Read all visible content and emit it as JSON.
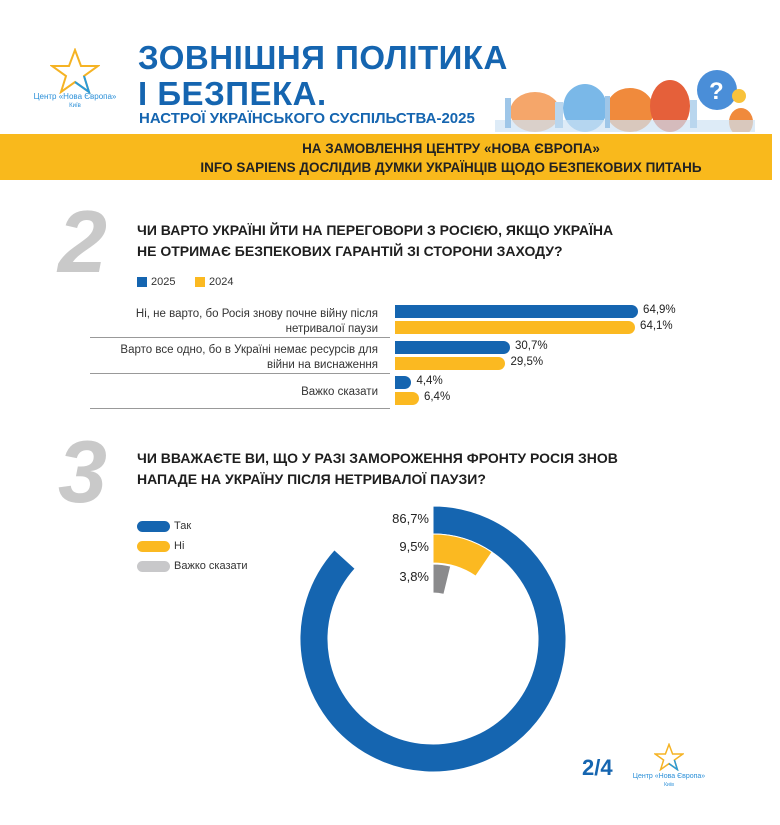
{
  "header": {
    "title_line1": "ЗОВНІШНЯ ПОЛІТИКА",
    "title_line2": "І БЕЗПЕКА.",
    "subtitle": "НАСТРОЇ УКРАЇНСЬКОГО СУСПІЛЬСТВА-2025",
    "logo_name": "Центр «Нова Європа»",
    "logo_city": "Київ"
  },
  "band": {
    "line1": "НА ЗАМОВЛЕННЯ ЦЕНТРУ «НОВА ЄВРОПА»",
    "line2": "INFO SAPIENS ДОСЛІДИВ ДУМКИ УКРАЇНЦІВ ЩОДО БЕЗПЕКОВИХ ПИТАНЬ"
  },
  "colors": {
    "blue": "#1565b0",
    "yellow": "#fbb921",
    "gray": "#8a8a8c",
    "band": "#f9b91c"
  },
  "footer": {
    "page": "2/4",
    "logo_name": "Центр «Нова Європа»",
    "logo_city": "Київ"
  },
  "chart_data": [
    {
      "type": "bar",
      "number": "2",
      "title_line1": "ЧИ ВАРТО УКРАЇНІ ЙТИ НА ПЕРЕГОВОРИ З РОСІЄЮ, ЯКЩО УКРАЇНА",
      "title_line2": "НЕ ОТРИМАЄ БЕЗПЕКОВИХ ГАРАНТІЙ ЗІ СТОРОНИ ЗАХОДУ?",
      "orientation": "horizontal",
      "legend": "top-left",
      "categories": [
        {
          "line1": "Ні, не варто, бо Росія знову почне війну після",
          "line2": "нетривалої паузи"
        },
        {
          "line1": "Варто все одно, бо в Україні немає ресурсів для",
          "line2": "війни на виснаження"
        },
        {
          "line1": "Важко сказати",
          "line2": ""
        }
      ],
      "series": [
        {
          "name": "2025",
          "color": "#1565b0",
          "values": [
            64.9,
            30.7,
            4.4
          ],
          "labels": [
            "64,9%",
            "30,7%",
            "4,4%"
          ]
        },
        {
          "name": "2024",
          "color": "#fbb921",
          "values": [
            64.1,
            29.5,
            6.4
          ],
          "labels": [
            "64,1%",
            "29,5%",
            "6,4%"
          ]
        }
      ]
    },
    {
      "type": "pie",
      "variant": "radial-bar",
      "number": "3",
      "title_line1": "ЧИ ВВАЖАЄТЕ ВИ, ЩО У РАЗІ ЗАМОРОЖЕННЯ ФРОНТУ РОСІЯ ЗНОВ",
      "title_line2": "НАПАДЕ НА УКРАЇНУ ПІСЛЯ НЕТРИВАЛОЇ ПАУЗИ?",
      "legend": "top-left",
      "slices": [
        {
          "name": "Так",
          "value": 86.7,
          "label": "86,7%",
          "color": "#1565b0"
        },
        {
          "name": "Ні",
          "value": 9.5,
          "label": "9,5%",
          "color": "#fbb921"
        },
        {
          "name": "Важко сказати",
          "value": 3.8,
          "label": "3,8%",
          "color": "#8a8a8c"
        }
      ]
    }
  ]
}
